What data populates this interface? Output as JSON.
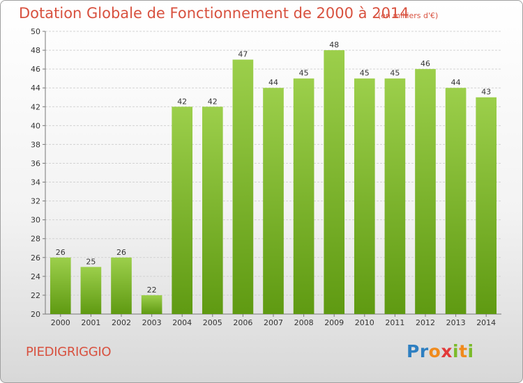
{
  "header": {
    "title": "Dotation Globale de Fonctionnement de 2000 à 2014",
    "unit_note": "(en milliers d'€)"
  },
  "commune": "PIEDIGRIGGIO",
  "brand": {
    "name": "Proxiti",
    "colors": [
      "#2e7fc1",
      "#f08a1c",
      "#e23a3a",
      "#7bbb2a"
    ]
  },
  "colors": {
    "bar_light": "#9ccf4b",
    "bar_dark": "#5f9a12",
    "title": "#d8513f"
  },
  "chart_data": {
    "type": "bar",
    "title": "Dotation Globale de Fonctionnement de 2000 à 2014",
    "subtitle": "(en milliers d'€)",
    "xlabel": "",
    "ylabel": "",
    "categories": [
      "2000",
      "2001",
      "2002",
      "2003",
      "2004",
      "2005",
      "2006",
      "2007",
      "2008",
      "2009",
      "2010",
      "2011",
      "2012",
      "2013",
      "2014"
    ],
    "values": [
      26,
      25,
      26,
      22,
      42,
      42,
      47,
      44,
      45,
      48,
      45,
      45,
      46,
      44,
      43
    ],
    "ylim": [
      20,
      50
    ],
    "yticks": [
      20,
      22,
      24,
      26,
      28,
      30,
      32,
      34,
      36,
      38,
      40,
      42,
      44,
      46,
      48,
      50
    ],
    "grid": true,
    "data_labels": true
  }
}
